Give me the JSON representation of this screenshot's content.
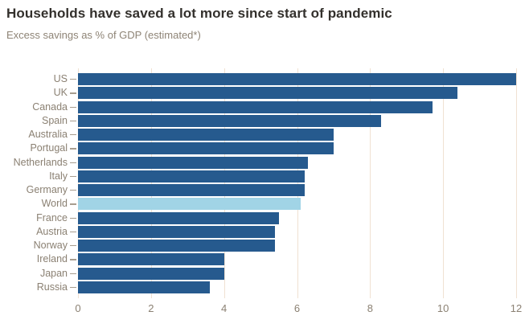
{
  "header": {
    "title": "Households have saved a lot more since start of pandemic",
    "subtitle": "Excess savings as % of GDP (estimated*)"
  },
  "chart_data": {
    "type": "bar",
    "orientation": "horizontal",
    "title": "Households have saved a lot more since start of pandemic",
    "subtitle": "Excess savings as % of GDP (estimated*)",
    "categories": [
      "US",
      "UK",
      "Canada",
      "Spain",
      "Australia",
      "Portugal",
      "Netherlands",
      "Italy",
      "Germany",
      "World",
      "France",
      "Austria",
      "Norway",
      "Ireland",
      "Japan",
      "Russia"
    ],
    "values": [
      12,
      10.4,
      9.7,
      8.3,
      7,
      7,
      6.3,
      6.2,
      6.2,
      6.1,
      5.5,
      5.4,
      5.4,
      4,
      4,
      3.6
    ],
    "highlight_index": 9,
    "highlight_category": "World",
    "xlim": [
      0,
      12
    ],
    "x_ticks": [
      0,
      2,
      4,
      6,
      8,
      10,
      12
    ],
    "grid": true,
    "legend": false,
    "xlabel": "",
    "ylabel": ""
  },
  "colors": {
    "bar": "#265a8e",
    "highlight_bar": "#a1d4e6",
    "gridline": "#f0e1d2",
    "axis_text": "#8b8173",
    "category_tick": "#a79d8f",
    "title": "#33302c",
    "subtitle": "#8e8476",
    "background": "#ffffff"
  }
}
